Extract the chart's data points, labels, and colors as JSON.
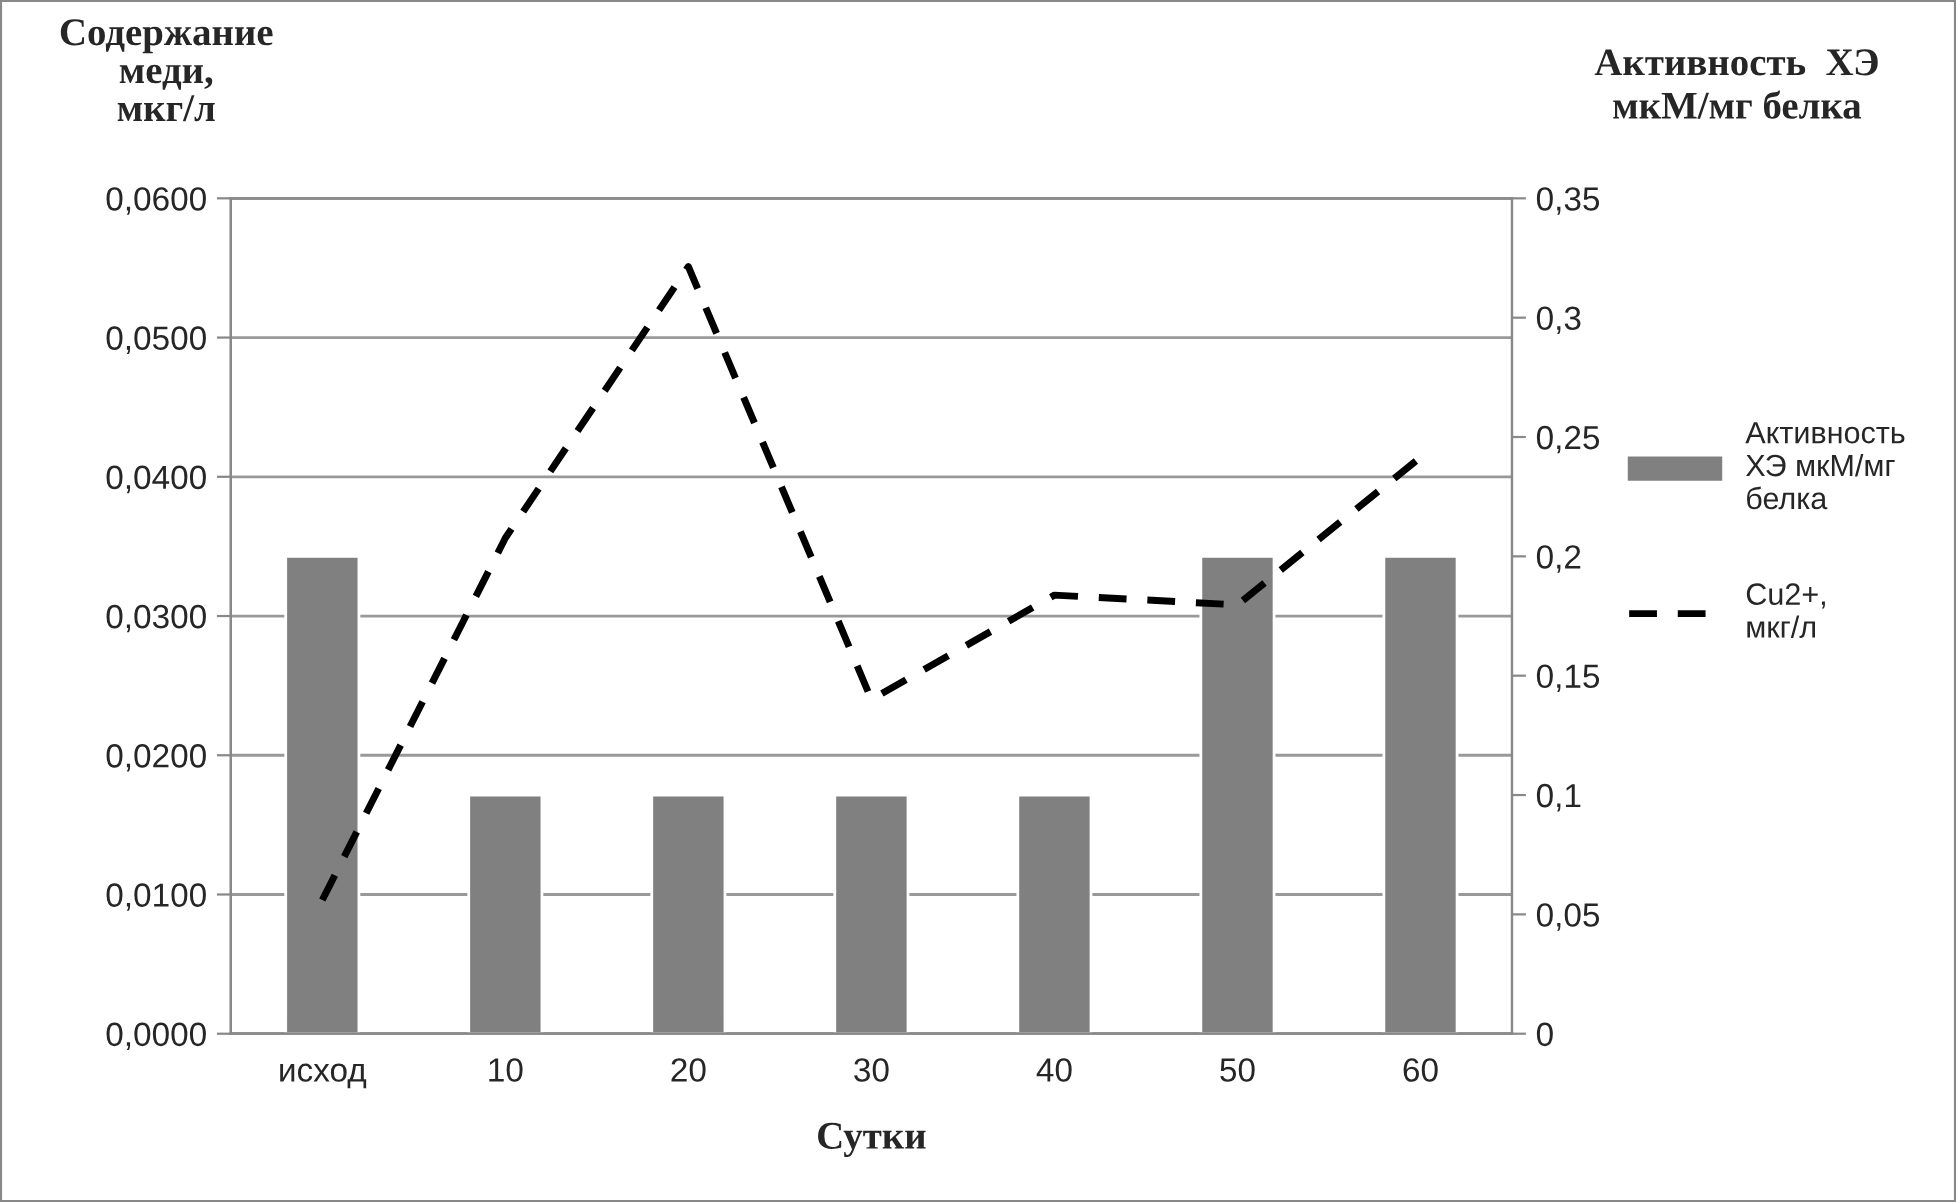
{
  "chart_data": {
    "type": "bar",
    "categories": [
      "исход",
      "10",
      "20",
      "30",
      "40",
      "50",
      "60"
    ],
    "series": [
      {
        "name": "Активность ХЭ мкМ/мг белка",
        "axis": "y2",
        "color": "#808080",
        "values": [
          0.2,
          0.1,
          0.1,
          0.1,
          0.1,
          0.2,
          0.2
        ]
      },
      {
        "name": "Cu2+, мкг/л",
        "type": "line",
        "axis": "y",
        "color": "#000000",
        "line_style": "dashed",
        "values": [
          0.0096,
          0.0356,
          0.0551,
          0.024,
          0.0315,
          0.0308,
          0.0414
        ]
      }
    ],
    "xlabel": "Сутки",
    "ylabel": "Содержание\nмеди,\nмкг/л",
    "y2label": "Активность  ХЭ\nмкМ/мг белка",
    "ylim": [
      0,
      0.06
    ],
    "yticks": [
      {
        "value": 0,
        "label": "0,0000"
      },
      {
        "value": 0.01,
        "label": "0,0100"
      },
      {
        "value": 0.02,
        "label": "0,0200"
      },
      {
        "value": 0.03,
        "label": "0,0300"
      },
      {
        "value": 0.04,
        "label": "0,0400"
      },
      {
        "value": 0.05,
        "label": "0,0500"
      },
      {
        "value": 0.06,
        "label": "0,0600"
      }
    ],
    "y2lim": [
      0,
      0.35
    ],
    "y2ticks": [
      0,
      {
        "value": 0.05,
        "label": "0,05"
      },
      {
        "value": 0.1,
        "label": "0,1"
      },
      {
        "value": 0.15,
        "label": "0,15"
      },
      {
        "value": 0.2,
        "label": "0,2"
      },
      {
        "value": 0.25,
        "label": "0,25"
      },
      {
        "value": 0.3,
        "label": "0,3"
      },
      {
        "value": 0.35,
        "label": "0,35"
      }
    ],
    "grid": "y",
    "legend": "right"
  }
}
